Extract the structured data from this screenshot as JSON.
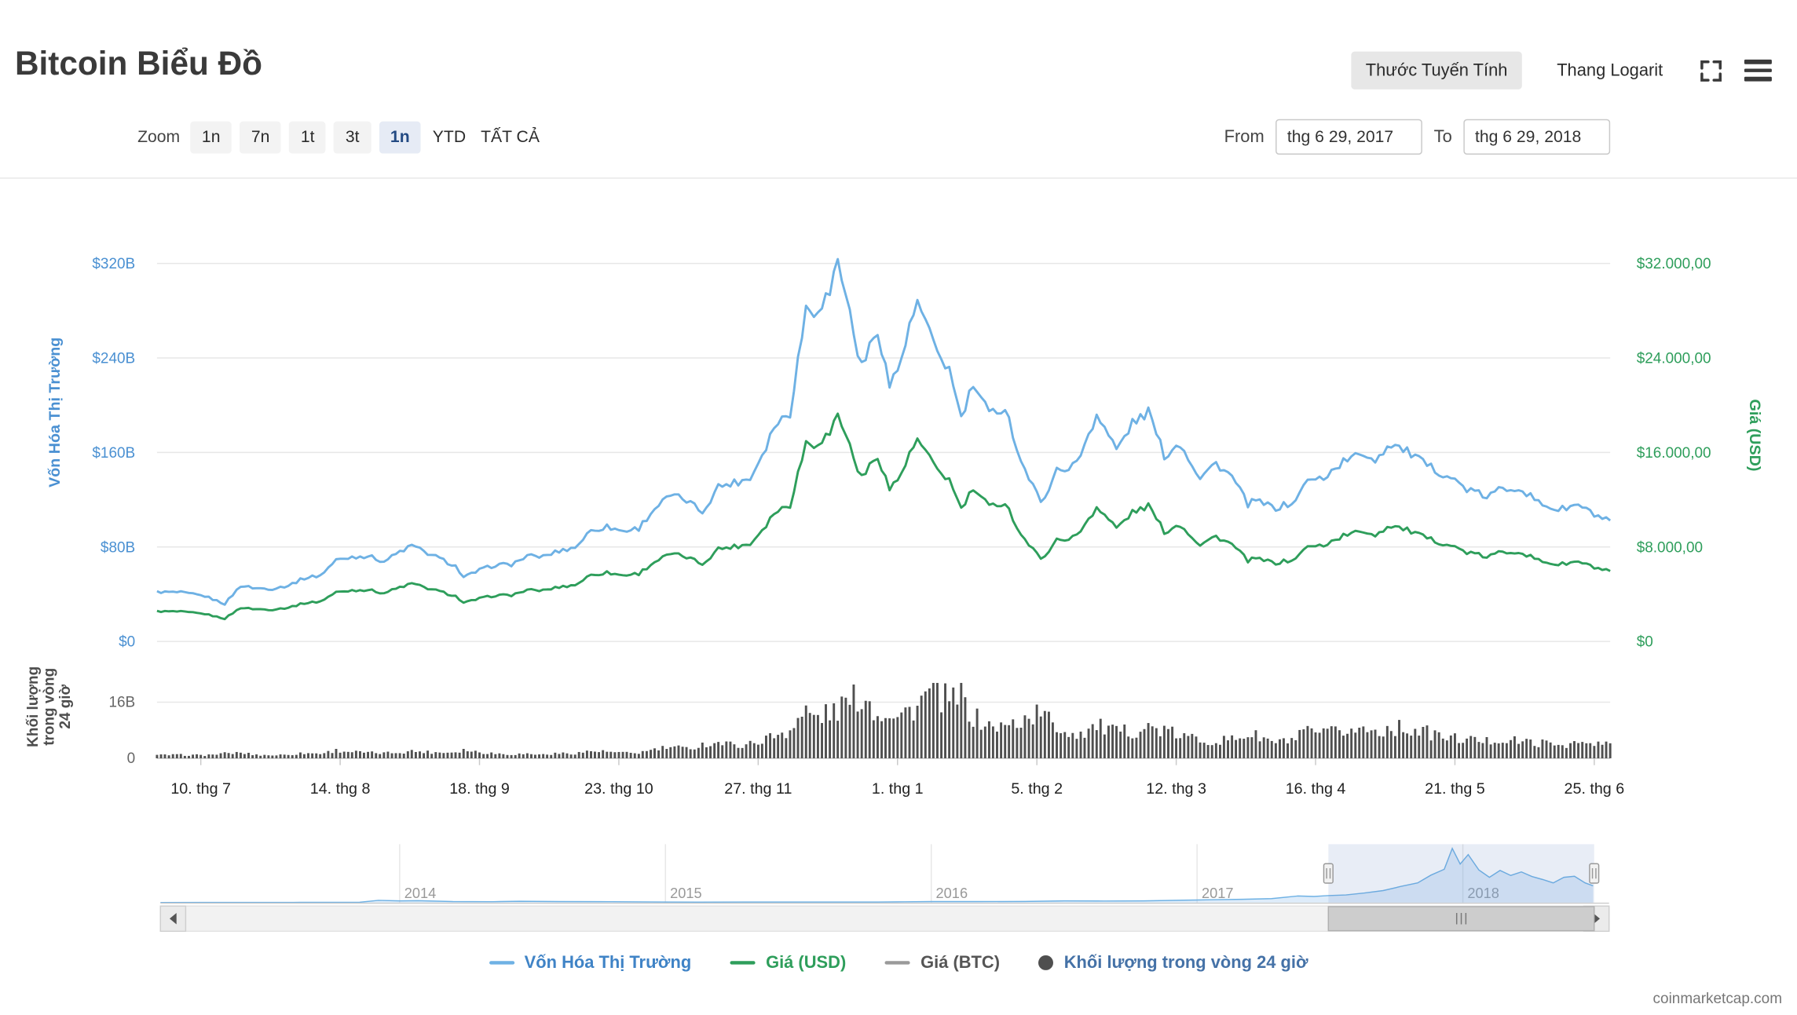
{
  "header": {
    "title": "Bitcoin Biểu Đồ",
    "scale_linear_label": "Thước Tuyến Tính",
    "scale_log_label": "Thang Logarit"
  },
  "toolbar": {
    "zoom_label": "Zoom",
    "zoom_buttons": [
      {
        "label": "1n",
        "active": false,
        "plain": false
      },
      {
        "label": "7n",
        "active": false,
        "plain": false
      },
      {
        "label": "1t",
        "active": false,
        "plain": false
      },
      {
        "label": "3t",
        "active": false,
        "plain": false
      },
      {
        "label": "1n",
        "active": true,
        "plain": false
      },
      {
        "label": "YTD",
        "active": false,
        "plain": true
      },
      {
        "label": "TẤT CẢ",
        "active": false,
        "plain": true
      }
    ],
    "from_label": "From",
    "from_value": "thg 6 29, 2017",
    "to_label": "To",
    "to_value": "thg 6 29, 2018"
  },
  "colors": {
    "market_cap": "#6eb1e4",
    "axis_left": "#4a90d2",
    "price_usd": "#2e9e5b",
    "axis_right": "#2e9e5b",
    "price_btc": "#9a9a9a",
    "volume": "#4f4f4f",
    "active_zoom_bg": "#e6ebf5",
    "navigator_fill": "rgba(124,181,236,0.25)",
    "selection_fill": "rgba(102,133,194,0.15)"
  },
  "chart_data": {
    "type": "line",
    "title": "Bitcoin Biểu Đồ",
    "x_unit": "days since From date (thg 6 29, 2017)",
    "series_names": {
      "market_cap": "Vốn Hóa Thị Trường",
      "price_usd": "Giá (USD)",
      "price_btc": "Giá (BTC)",
      "volume": "Khối lượng trong vòng 24 giờ"
    },
    "price_btc_visible": false,
    "axes": {
      "left": {
        "title": "Vốn Hóa Thị Trường",
        "max": 320,
        "tick_values": [
          0,
          80,
          160,
          240,
          320
        ],
        "tick_labels": [
          "$0",
          "$80B",
          "$160B",
          "$240B",
          "$320B"
        ]
      },
      "right": {
        "title": "Giá (USD)",
        "max": 32000,
        "tick_values": [
          0,
          8000,
          16000,
          24000,
          32000
        ],
        "tick_labels": [
          "$0",
          "$8.000,00",
          "$16.000,00",
          "$24.000,00",
          "$32.000,00"
        ]
      },
      "volume": {
        "title": "Khối lượng trong vòng 24 giờ",
        "title_lines": [
          "Khối lượng",
          "trong vòng",
          "24 giờ"
        ],
        "tick_value": 16,
        "tick_labels": [
          "0",
          "16B"
        ],
        "max_display": 21.5
      },
      "x": {
        "labels": [
          [
            11,
            "10. thg 7"
          ],
          [
            46,
            "14. thg 8"
          ],
          [
            81,
            "18. thg 9"
          ],
          [
            116,
            "23. thg 10"
          ],
          [
            151,
            "27. thg 11"
          ],
          [
            186,
            "1. thg 1"
          ],
          [
            221,
            "5. thg 2"
          ],
          [
            256,
            "12. thg 3"
          ],
          [
            291,
            "16. thg 4"
          ],
          [
            326,
            "21. thg 5"
          ],
          [
            361,
            "25. thg 6"
          ]
        ]
      }
    },
    "series": {
      "keys": [
        "day",
        "price_usd",
        "market_cap_b",
        "volume_b"
      ],
      "points": [
        [
          0,
          2550,
          41.9,
          0.9
        ],
        [
          6,
          2520,
          41.5,
          1.0
        ],
        [
          12,
          2330,
          38.4,
          0.9
        ],
        [
          17,
          1930,
          31.8,
          1.4
        ],
        [
          21,
          2860,
          47.2,
          1.6
        ],
        [
          25,
          2730,
          45.0,
          1.0
        ],
        [
          29,
          2700,
          44.6,
          0.9
        ],
        [
          33,
          2870,
          47.4,
          1.1
        ],
        [
          37,
          3250,
          53.7,
          1.5
        ],
        [
          41,
          3380,
          55.9,
          1.4
        ],
        [
          45,
          4160,
          68.8,
          2.3
        ],
        [
          49,
          4330,
          71.6,
          1.9
        ],
        [
          53,
          4380,
          72.5,
          1.6
        ],
        [
          57,
          4090,
          67.7,
          1.5
        ],
        [
          61,
          4580,
          75.9,
          1.8
        ],
        [
          64,
          4900,
          81.2,
          2.1
        ],
        [
          67,
          4590,
          76.1,
          1.9
        ],
        [
          71,
          4230,
          70.2,
          1.7
        ],
        [
          75,
          3840,
          63.7,
          1.9
        ],
        [
          77,
          3250,
          54.0,
          2.5
        ],
        [
          81,
          3630,
          60.3,
          1.8
        ],
        [
          85,
          3900,
          64.8,
          1.4
        ],
        [
          89,
          3920,
          65.2,
          1.2
        ],
        [
          93,
          4340,
          72.2,
          1.3
        ],
        [
          97,
          4320,
          71.9,
          1.1
        ],
        [
          101,
          4610,
          76.7,
          1.4
        ],
        [
          105,
          4780,
          79.6,
          1.5
        ],
        [
          109,
          5640,
          94.0,
          2.1
        ],
        [
          113,
          5830,
          97.2,
          1.9
        ],
        [
          117,
          5600,
          93.4,
          1.5
        ],
        [
          121,
          5750,
          95.9,
          1.6
        ],
        [
          125,
          6750,
          112.7,
          2.6
        ],
        [
          129,
          7400,
          123.6,
          3.2
        ],
        [
          133,
          7150,
          119.5,
          2.8
        ],
        [
          137,
          6560,
          109.6,
          4.0
        ],
        [
          141,
          7850,
          131.3,
          4.6
        ],
        [
          145,
          8040,
          134.5,
          3.8
        ],
        [
          149,
          8250,
          138.1,
          4.2
        ],
        [
          153,
          9900,
          165.7,
          5.8
        ],
        [
          155,
          10900,
          182.6,
          6.5
        ],
        [
          159,
          11600,
          194.3,
          8.5
        ],
        [
          163,
          16850,
          282.4,
          13.5
        ],
        [
          165,
          16700,
          280.1,
          12.0
        ],
        [
          169,
          17600,
          295.2,
          13.0
        ],
        [
          171,
          19350,
          324.7,
          14.5
        ],
        [
          175,
          15600,
          261.9,
          17.0
        ],
        [
          177,
          13800,
          231.7,
          19.0
        ],
        [
          181,
          15800,
          265.4,
          13.0
        ],
        [
          184,
          12900,
          216.7,
          14.5
        ],
        [
          186,
          13650,
          229.5,
          12.0
        ],
        [
          191,
          17100,
          287.6,
          15.5
        ],
        [
          195,
          14900,
          250.6,
          20.5
        ],
        [
          199,
          13650,
          229.7,
          16.0
        ],
        [
          202,
          11200,
          188.6,
          18.0
        ],
        [
          205,
          12900,
          217.2,
          12.0
        ],
        [
          209,
          11400,
          192.1,
          9.5
        ],
        [
          213,
          11800,
          199.0,
          9.0
        ],
        [
          217,
          9050,
          152.7,
          11.0
        ],
        [
          222,
          6950,
          117.3,
          13.5
        ],
        [
          226,
          8550,
          144.3,
          9.0
        ],
        [
          231,
          8900,
          150.3,
          7.0
        ],
        [
          236,
          11400,
          192.7,
          9.5
        ],
        [
          241,
          9600,
          162.3,
          7.5
        ],
        [
          245,
          10900,
          184.4,
          8.0
        ],
        [
          249,
          11500,
          194.7,
          9.0
        ],
        [
          253,
          9300,
          157.5,
          8.0
        ],
        [
          257,
          9900,
          167.7,
          6.5
        ],
        [
          262,
          8200,
          139.0,
          5.5
        ],
        [
          266,
          8900,
          151.0,
          5.0
        ],
        [
          270,
          8200,
          139.2,
          5.5
        ],
        [
          274,
          6850,
          116.3,
          7.0
        ],
        [
          276,
          7000,
          118.9,
          6.5
        ],
        [
          281,
          6650,
          113.0,
          4.5
        ],
        [
          286,
          6950,
          118.1,
          5.5
        ],
        [
          288,
          7900,
          134.3,
          7.5
        ],
        [
          293,
          8150,
          138.7,
          7.0
        ],
        [
          298,
          8950,
          152.3,
          8.0
        ],
        [
          303,
          9350,
          159.2,
          8.5
        ],
        [
          306,
          9050,
          154.2,
          8.0
        ],
        [
          310,
          9850,
          167.9,
          9.0
        ],
        [
          315,
          9300,
          158.6,
          8.5
        ],
        [
          319,
          8700,
          148.4,
          7.5
        ],
        [
          324,
          8250,
          140.9,
          6.0
        ],
        [
          329,
          7550,
          129.0,
          5.5
        ],
        [
          334,
          7150,
          122.2,
          5.0
        ],
        [
          337,
          7500,
          128.2,
          5.5
        ],
        [
          342,
          7650,
          130.9,
          5.0
        ],
        [
          347,
          6850,
          117.3,
          4.5
        ],
        [
          352,
          6500,
          111.3,
          4.0
        ],
        [
          357,
          6750,
          115.6,
          4.5
        ],
        [
          361,
          6250,
          107.1,
          4.0
        ],
        [
          365,
          5900,
          101.2,
          4.2
        ]
      ]
    },
    "navigator": {
      "x_range": [
        2013.1,
        2018.55
      ],
      "years": [
        2014,
        2015,
        2016,
        2017,
        2018
      ],
      "selection": [
        2017.494,
        2018.494
      ],
      "points": [
        [
          2013.1,
          0.5
        ],
        [
          2013.3,
          1.2
        ],
        [
          2013.6,
          1.3
        ],
        [
          2013.85,
          2.4
        ],
        [
          2013.92,
          13.5
        ],
        [
          2014.0,
          10.2
        ],
        [
          2014.07,
          11.5
        ],
        [
          2014.2,
          6.2
        ],
        [
          2014.35,
          5.6
        ],
        [
          2014.45,
          8.0
        ],
        [
          2014.6,
          6.4
        ],
        [
          2014.8,
          5.2
        ],
        [
          2015.0,
          3.1
        ],
        [
          2015.12,
          2.9
        ],
        [
          2015.3,
          3.3
        ],
        [
          2015.55,
          3.4
        ],
        [
          2015.8,
          3.5
        ],
        [
          2015.9,
          4.7
        ],
        [
          2016.0,
          6.3
        ],
        [
          2016.17,
          6.1
        ],
        [
          2016.35,
          6.7
        ],
        [
          2016.5,
          10.4
        ],
        [
          2016.65,
          9.4
        ],
        [
          2016.8,
          10.1
        ],
        [
          2016.95,
          14.2
        ],
        [
          2017.05,
          17.0
        ],
        [
          2017.17,
          19.8
        ],
        [
          2017.28,
          24.0
        ],
        [
          2017.38,
          40.0
        ],
        [
          2017.44,
          37.0
        ],
        [
          2017.49,
          42.0
        ],
        [
          2017.56,
          46.0
        ],
        [
          2017.63,
          58.0
        ],
        [
          2017.7,
          72.0
        ],
        [
          2017.77,
          98.0
        ],
        [
          2017.83,
          118.0
        ],
        [
          2017.88,
          165.0
        ],
        [
          2017.93,
          200.0
        ],
        [
          2017.96,
          325.0
        ],
        [
          2017.99,
          232.0
        ],
        [
          2018.02,
          288.0
        ],
        [
          2018.06,
          196.0
        ],
        [
          2018.1,
          152.0
        ],
        [
          2018.14,
          193.0
        ],
        [
          2018.18,
          163.0
        ],
        [
          2018.22,
          184.0
        ],
        [
          2018.26,
          157.0
        ],
        [
          2018.3,
          139.0
        ],
        [
          2018.34,
          118.0
        ],
        [
          2018.38,
          152.0
        ],
        [
          2018.42,
          158.0
        ],
        [
          2018.46,
          118.0
        ],
        [
          2018.49,
          101.0
        ]
      ]
    }
  },
  "legend": {
    "items": [
      {
        "id": "market-cap",
        "label": "Vốn Hóa Thị Trường",
        "swatch": "line",
        "color": "#6eb1e4",
        "text_color": "#3f83c6"
      },
      {
        "id": "price-usd",
        "label": "Giá (USD)",
        "swatch": "line",
        "color": "#2e9e5b",
        "text_color": "#2e9e5b"
      },
      {
        "id": "price-btc",
        "label": "Giá (BTC)",
        "swatch": "line",
        "color": "#9a9a9a",
        "text_color": "#555555"
      },
      {
        "id": "volume",
        "label": "Khối lượng trong vòng 24 giờ",
        "swatch": "circle",
        "color": "#4f4f4f",
        "text_color": "#4572a7"
      }
    ]
  },
  "footer": {
    "credit": "coinmarketcap.com"
  }
}
